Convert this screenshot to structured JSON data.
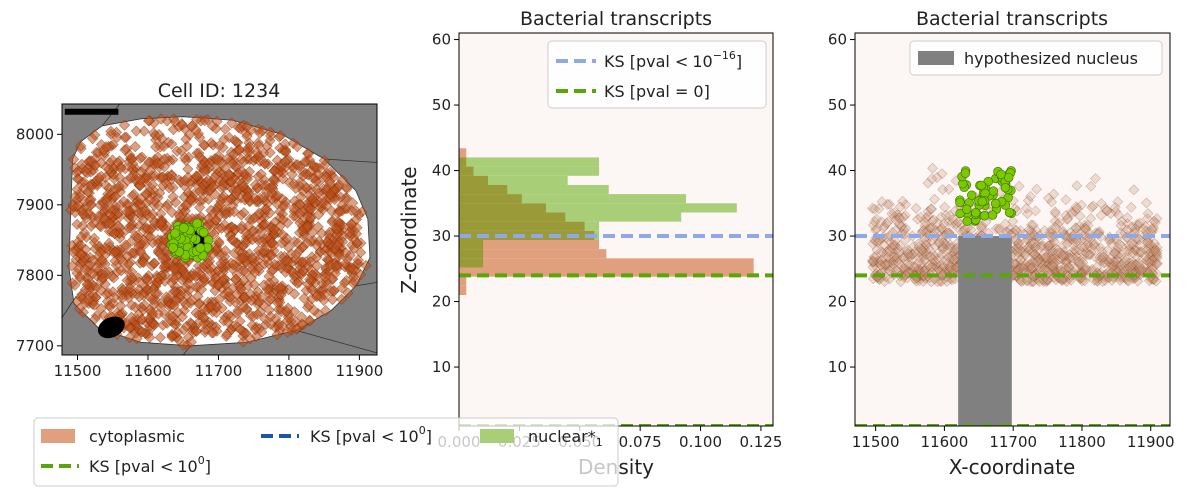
{
  "colors": {
    "panel_bg": "#808080",
    "cell_fill": "#ffffff",
    "cyto_marker": "#c0521c",
    "cyto_edge": "#7a2d0a",
    "nuc_marker": "#7bc900",
    "nuc_edge": "#3f6b00",
    "plot_bg": "#fcf6f5",
    "hist_cyto": "#e0a07e",
    "hist_nuc": "#a8ce78",
    "hist_overlap": "#9b9a38",
    "ks_light_blue": "#8fa9e6",
    "ks_green": "#5aa509",
    "ks_dark_blue": "#1d56a8",
    "nucleus_rect": "#808080",
    "transcript_faint": "#c9987c"
  },
  "chart_data": [
    {
      "id": "cell",
      "type": "scatter",
      "title": "Cell ID: 1234",
      "xlabel": "",
      "ylabel": "",
      "xlim": [
        11478,
        11925
      ],
      "ylim": [
        7687,
        8043
      ],
      "xticks": [
        11500,
        11600,
        11700,
        11800,
        11900
      ],
      "yticks": [
        7700,
        7800,
        7900,
        8000
      ],
      "cell_boundary": [
        [
          11493,
          7965
        ],
        [
          11505,
          7990
        ],
        [
          11535,
          8012
        ],
        [
          11590,
          8022
        ],
        [
          11650,
          8025
        ],
        [
          11720,
          8020
        ],
        [
          11790,
          8000
        ],
        [
          11850,
          7965
        ],
        [
          11895,
          7920
        ],
        [
          11912,
          7880
        ],
        [
          11915,
          7825
        ],
        [
          11895,
          7785
        ],
        [
          11860,
          7750
        ],
        [
          11810,
          7722
        ],
        [
          11740,
          7705
        ],
        [
          11660,
          7700
        ],
        [
          11590,
          7705
        ],
        [
          11530,
          7725
        ],
        [
          11495,
          7760
        ],
        [
          11488,
          7810
        ],
        [
          11490,
          7880
        ]
      ],
      "series": [
        {
          "name": "cytoplasmic",
          "marker": "diamond",
          "count": 1700
        },
        {
          "name": "nuclear",
          "marker": "circle",
          "count": 55,
          "center": [
            11660,
            7850
          ],
          "radius": 28
        }
      ],
      "annotations": {
        "scale_bar": [
          11482,
          11558,
          8032
        ],
        "blob": [
          11565,
          7712
        ]
      },
      "grid": false
    },
    {
      "id": "density",
      "type": "bar",
      "title": "Bacterial transcripts",
      "xlabel": "Density",
      "ylabel": "Z-coordinate",
      "xlim": [
        0,
        0.13
      ],
      "ylim": [
        1,
        61
      ],
      "xtick_labels": [
        "0.000",
        "0.025",
        "0.050",
        "0.075",
        "0.100",
        "0.125"
      ],
      "yticks": [
        10,
        20,
        30,
        40,
        50,
        60
      ],
      "bin_width": 1.4,
      "series": [
        {
          "name": "cytoplasmic",
          "bins": [
            [
              21,
              0.003
            ],
            [
              22.4,
              0.003
            ],
            [
              23.8,
              0.122
            ],
            [
              25.2,
              0.122
            ],
            [
              26.6,
              0.061
            ],
            [
              28,
              0.058
            ],
            [
              29.4,
              0.056
            ],
            [
              30.8,
              0.052
            ],
            [
              32.2,
              0.044
            ],
            [
              33.6,
              0.036
            ],
            [
              35,
              0.026
            ],
            [
              36.4,
              0.02
            ],
            [
              37.8,
              0.012
            ],
            [
              39.2,
              0.006
            ],
            [
              40.6,
              0.003
            ],
            [
              42,
              0.003
            ]
          ]
        },
        {
          "name": "nuclear",
          "bins": [
            [
              25.2,
              0.01
            ],
            [
              26.6,
              0.01
            ],
            [
              28,
              0.01
            ],
            [
              29.4,
              0.058
            ],
            [
              30.8,
              0.058
            ],
            [
              32.2,
              0.092
            ],
            [
              33.6,
              0.115
            ],
            [
              35,
              0.094
            ],
            [
              36.4,
              0.062
            ],
            [
              37.8,
              0.045
            ],
            [
              39.2,
              0.058
            ],
            [
              40.6,
              0.058
            ]
          ]
        }
      ],
      "hlines": [
        {
          "name": "KS [pval < 10^-16]",
          "y": 30,
          "color": "#8fa9e6"
        },
        {
          "name": "KS [pval = 0]",
          "y": 24,
          "color": "#5aa509"
        },
        {
          "name": "",
          "y": 1,
          "color": "#5aa509"
        }
      ],
      "legend_position": "upper right",
      "legend": [
        {
          "label": "KS [pval ",
          "lt": "<",
          "base": "10",
          "exp": "−16",
          "close": "]"
        },
        {
          "label": "KS [pval = 0]"
        }
      ],
      "grid": false
    },
    {
      "id": "zx",
      "type": "scatter",
      "title": "Bacterial transcripts",
      "xlabel": "X-coordinate",
      "ylabel": "",
      "xlim": [
        11470,
        11928
      ],
      "ylim": [
        1,
        61
      ],
      "xticks": [
        11500,
        11600,
        11700,
        11800,
        11900
      ],
      "yticks": [
        10,
        20,
        30,
        40,
        50,
        60
      ],
      "series": [
        {
          "name": "cytoplasmic",
          "marker": "diamond",
          "count": 1100,
          "z_range": [
            23,
            40
          ],
          "alpha": 0.25
        },
        {
          "name": "nuclear",
          "marker": "circle",
          "count": 60,
          "x_range": [
            11620,
            11700
          ],
          "z_range": [
            32,
            40
          ]
        }
      ],
      "nucleus_rect": {
        "x": [
          11620,
          11698
        ],
        "z": [
          1,
          30
        ]
      },
      "hlines": [
        {
          "y": 30,
          "color": "#8fa9e6"
        },
        {
          "y": 24,
          "color": "#5aa509"
        },
        {
          "y": 1,
          "color": "#5aa509"
        }
      ],
      "legend_position": "upper right",
      "legend": [
        {
          "label": "hypothesized nucleus"
        }
      ],
      "grid": false
    }
  ],
  "figure_legend": {
    "position": "lower left",
    "items": [
      {
        "label": "cytoplasmic",
        "type": "patch",
        "color": "#e0a07e"
      },
      {
        "label": "KS [pval ",
        "lt": "<",
        "base": "10",
        "exp": "0",
        "close": "]",
        "type": "line",
        "color": "#5aa509"
      },
      {
        "label": "KS [pval ",
        "lt": "<",
        "base": "10",
        "exp": "0",
        "close": "]",
        "type": "line",
        "color": "#1d56a8"
      },
      {
        "label": "nuclear*",
        "sub": "1",
        "type": "patch",
        "color": "#a8ce78"
      }
    ]
  }
}
